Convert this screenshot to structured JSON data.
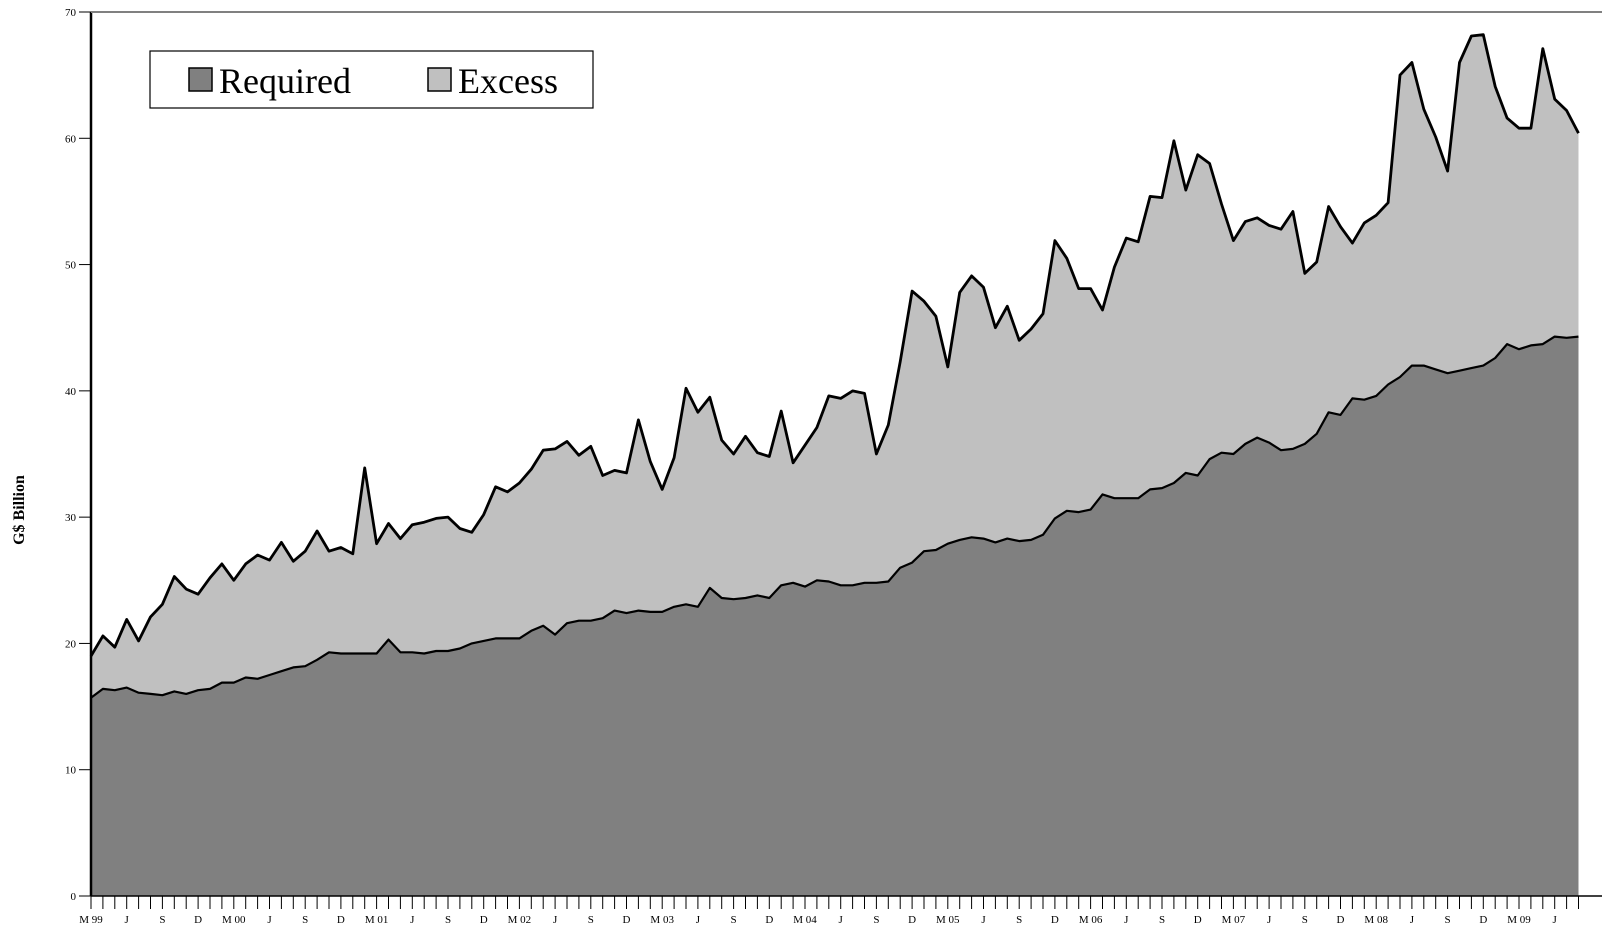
{
  "chart_data": {
    "type": "area",
    "stacked": true,
    "ylabel": "G$ Billion",
    "ylim": [
      0,
      70
    ],
    "yticks": [
      0,
      10,
      20,
      30,
      40,
      50,
      60,
      70
    ],
    "grid": false,
    "legend_position": "top-left",
    "x_start": "1999-03",
    "x_end": "2009-07",
    "x_tick_labels": [
      {
        "index": 0,
        "label": "M 99"
      },
      {
        "index": 3,
        "label": "J"
      },
      {
        "index": 6,
        "label": "S"
      },
      {
        "index": 9,
        "label": "D"
      },
      {
        "index": 12,
        "label": "M 00"
      },
      {
        "index": 15,
        "label": "J"
      },
      {
        "index": 18,
        "label": "S"
      },
      {
        "index": 21,
        "label": "D"
      },
      {
        "index": 24,
        "label": "M 01"
      },
      {
        "index": 27,
        "label": "J"
      },
      {
        "index": 30,
        "label": "S"
      },
      {
        "index": 33,
        "label": "D"
      },
      {
        "index": 36,
        "label": "M 02"
      },
      {
        "index": 39,
        "label": "J"
      },
      {
        "index": 42,
        "label": "S"
      },
      {
        "index": 45,
        "label": "D"
      },
      {
        "index": 48,
        "label": "M 03"
      },
      {
        "index": 51,
        "label": "J"
      },
      {
        "index": 54,
        "label": "S"
      },
      {
        "index": 57,
        "label": "D"
      },
      {
        "index": 60,
        "label": "M 04"
      },
      {
        "index": 63,
        "label": "J"
      },
      {
        "index": 66,
        "label": "S"
      },
      {
        "index": 69,
        "label": "D"
      },
      {
        "index": 72,
        "label": "M 05"
      },
      {
        "index": 75,
        "label": "J"
      },
      {
        "index": 78,
        "label": "S"
      },
      {
        "index": 81,
        "label": "D"
      },
      {
        "index": 84,
        "label": "M 06"
      },
      {
        "index": 87,
        "label": "J"
      },
      {
        "index": 90,
        "label": "S"
      },
      {
        "index": 93,
        "label": "D"
      },
      {
        "index": 96,
        "label": "M 07"
      },
      {
        "index": 99,
        "label": "J"
      },
      {
        "index": 102,
        "label": "S"
      },
      {
        "index": 105,
        "label": "D"
      },
      {
        "index": 108,
        "label": "M 08"
      },
      {
        "index": 111,
        "label": "J"
      },
      {
        "index": 114,
        "label": "S"
      },
      {
        "index": 117,
        "label": "D"
      },
      {
        "index": 120,
        "label": "M 09"
      },
      {
        "index": 123,
        "label": "J"
      }
    ],
    "series": [
      {
        "name": "Required",
        "color": "#808080",
        "values": [
          15.7,
          16.4,
          16.3,
          16.5,
          16.1,
          16.0,
          15.9,
          16.2,
          16.0,
          16.3,
          16.4,
          16.9,
          16.9,
          17.3,
          17.2,
          17.5,
          17.8,
          18.1,
          18.2,
          18.7,
          19.3,
          19.2,
          19.2,
          19.2,
          19.2,
          20.3,
          19.3,
          19.3,
          19.2,
          19.4,
          19.4,
          19.6,
          20.0,
          20.2,
          20.4,
          20.4,
          20.4,
          21.0,
          21.4,
          20.7,
          21.6,
          21.8,
          21.8,
          22.0,
          22.6,
          22.4,
          22.6,
          22.5,
          22.5,
          22.9,
          23.1,
          22.9,
          24.4,
          23.6,
          23.5,
          23.6,
          23.8,
          23.6,
          24.6,
          24.8,
          24.5,
          25.0,
          24.9,
          24.6,
          24.6,
          24.8,
          24.8,
          24.9,
          26.0,
          26.4,
          27.3,
          27.4,
          27.9,
          28.2,
          28.4,
          28.3,
          28.0,
          28.3,
          28.1,
          28.2,
          28.6,
          29.9,
          30.5,
          30.4,
          30.6,
          31.8,
          31.5,
          31.5,
          31.5,
          32.2,
          32.3,
          32.7,
          33.5,
          33.3,
          34.6,
          35.1,
          35.0,
          35.8,
          36.3,
          35.9,
          35.3,
          35.4,
          35.8,
          36.6,
          38.3,
          38.1,
          39.4,
          39.3,
          39.6,
          40.5,
          41.1,
          42.0,
          42.0,
          41.7,
          41.4,
          41.6,
          41.8,
          42.0,
          42.6,
          43.7,
          43.3,
          43.6,
          43.7,
          44.3,
          44.2,
          44.3
        ]
      },
      {
        "name": "Excess",
        "color": "#c0c0c0",
        "total_values": [
          19.0,
          20.6,
          19.7,
          21.9,
          20.2,
          22.1,
          23.1,
          25.3,
          24.3,
          23.9,
          25.2,
          26.3,
          25.0,
          26.3,
          27.0,
          26.6,
          28.0,
          26.5,
          27.3,
          28.9,
          27.3,
          27.6,
          27.1,
          33.9,
          27.9,
          29.5,
          28.3,
          29.4,
          29.6,
          29.9,
          30.0,
          29.1,
          28.8,
          30.2,
          32.4,
          32.0,
          32.7,
          33.8,
          35.3,
          35.4,
          36.0,
          34.9,
          35.6,
          33.3,
          33.7,
          33.5,
          37.7,
          34.4,
          32.2,
          34.7,
          40.2,
          38.3,
          39.5,
          36.1,
          35.0,
          36.4,
          35.1,
          34.8,
          38.4,
          34.3,
          35.7,
          37.1,
          39.6,
          39.4,
          40.0,
          39.8,
          35.0,
          37.3,
          42.3,
          47.9,
          47.1,
          45.9,
          41.9,
          47.8,
          49.1,
          48.2,
          45.0,
          46.7,
          44.0,
          44.9,
          46.1,
          51.9,
          50.5,
          48.1,
          48.1,
          46.4,
          49.8,
          52.1,
          51.8,
          55.4,
          55.3,
          59.8,
          55.9,
          58.7,
          58.0,
          54.8,
          51.9,
          53.4,
          53.7,
          53.1,
          52.8,
          54.2,
          49.3,
          50.2,
          54.6,
          53.0,
          51.7,
          53.3,
          53.9,
          54.9,
          65.0,
          66.0,
          62.3,
          60.1,
          57.4,
          66.0,
          68.1,
          68.2,
          64.1,
          61.6,
          60.8,
          60.8,
          67.1,
          63.1,
          62.2,
          60.4
        ]
      }
    ]
  },
  "legend": {
    "items": [
      {
        "label": "Required",
        "color": "#808080"
      },
      {
        "label": "Excess",
        "color": "#c0c0c0"
      }
    ]
  }
}
